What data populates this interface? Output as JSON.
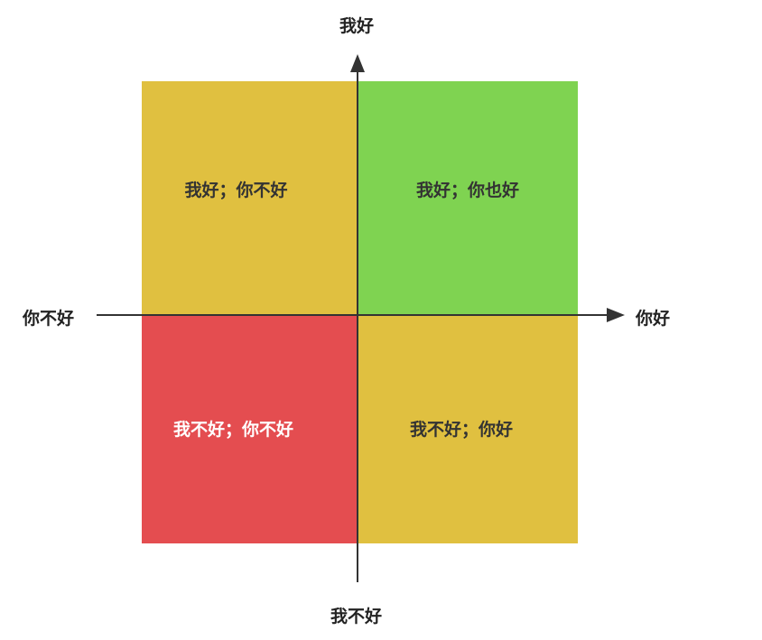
{
  "quadrants": {
    "top_left": {
      "label": "我好；你不好",
      "color": "#E0C040",
      "text_color": "#333333"
    },
    "top_right": {
      "label": "我好；你也好",
      "color": "#7FD351",
      "text_color": "#333333"
    },
    "bottom_left": {
      "label": "我不好；你不好",
      "color": "#E44D50",
      "text_color": "#FFFFFF"
    },
    "bottom_right": {
      "label": "我不好；你好",
      "color": "#E0C040",
      "text_color": "#333333"
    }
  },
  "axes": {
    "top": "我好",
    "bottom": "我不好",
    "left": "你不好",
    "right": "你好",
    "color": "#333333"
  }
}
